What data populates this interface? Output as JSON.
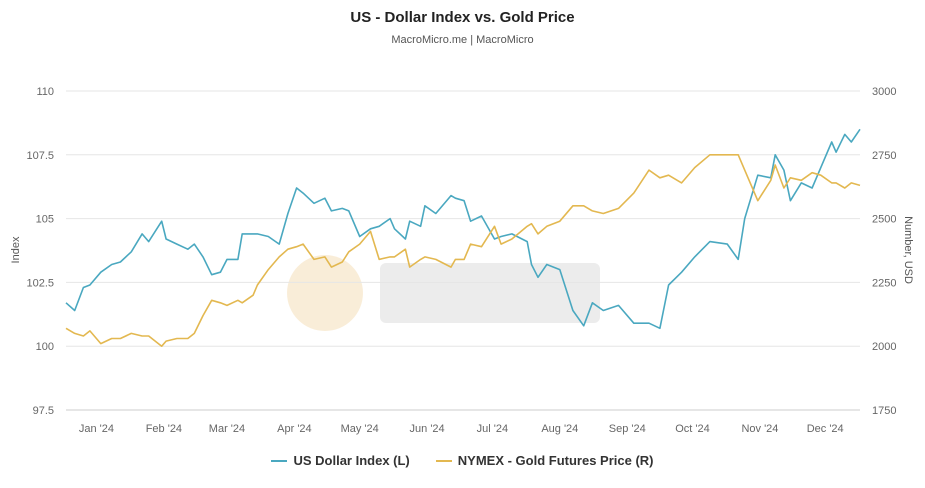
{
  "chart_data": {
    "type": "line",
    "title": "US - Dollar Index vs. Gold Price",
    "subtitle": "MacroMicro.me | MacroMicro",
    "ylabel_left": "Index",
    "ylabel_right": "Number, USD",
    "ylim_left": [
      97.5,
      110
    ],
    "ylim_right": [
      1750,
      3000
    ],
    "left_ticks": [
      "97.5",
      "100",
      "102.5",
      "105",
      "107.5",
      "110"
    ],
    "right_ticks": [
      "1750",
      "2000",
      "2250",
      "2500",
      "2750",
      "3000"
    ],
    "x_ticks": [
      "Jan '24",
      "Feb '24",
      "Mar '24",
      "Apr '24",
      "May '24",
      "Jun '24",
      "Jul '24",
      "Aug '24",
      "Sep '24",
      "Oct '24",
      "Nov '24",
      "Dec '24"
    ],
    "grid": true,
    "legend_position": "bottom",
    "series": [
      {
        "name": "US Dollar Index (L)",
        "axis": "left",
        "color": "#4aa8c0",
        "points": [
          [
            "2024-01-01",
            101.7
          ],
          [
            "2024-01-05",
            101.4
          ],
          [
            "2024-01-09",
            102.3
          ],
          [
            "2024-01-12",
            102.4
          ],
          [
            "2024-01-17",
            102.9
          ],
          [
            "2024-01-22",
            103.2
          ],
          [
            "2024-01-26",
            103.3
          ],
          [
            "2024-01-31",
            103.7
          ],
          [
            "2024-02-05",
            104.4
          ],
          [
            "2024-02-08",
            104.1
          ],
          [
            "2024-02-14",
            104.9
          ],
          [
            "2024-02-16",
            104.2
          ],
          [
            "2024-02-21",
            104.0
          ],
          [
            "2024-02-26",
            103.8
          ],
          [
            "2024-02-29",
            104.0
          ],
          [
            "2024-03-04",
            103.5
          ],
          [
            "2024-03-08",
            102.8
          ],
          [
            "2024-03-12",
            102.9
          ],
          [
            "2024-03-15",
            103.4
          ],
          [
            "2024-03-20",
            103.4
          ],
          [
            "2024-03-22",
            104.4
          ],
          [
            "2024-03-27",
            104.4
          ],
          [
            "2024-03-29",
            104.4
          ],
          [
            "2024-04-03",
            104.3
          ],
          [
            "2024-04-08",
            104.0
          ],
          [
            "2024-04-12",
            105.2
          ],
          [
            "2024-04-16",
            106.2
          ],
          [
            "2024-04-19",
            106.0
          ],
          [
            "2024-04-24",
            105.6
          ],
          [
            "2024-04-29",
            105.8
          ],
          [
            "2024-05-02",
            105.3
          ],
          [
            "2024-05-07",
            105.4
          ],
          [
            "2024-05-10",
            105.3
          ],
          [
            "2024-05-15",
            104.3
          ],
          [
            "2024-05-20",
            104.6
          ],
          [
            "2024-05-24",
            104.7
          ],
          [
            "2024-05-29",
            105.0
          ],
          [
            "2024-05-31",
            104.6
          ],
          [
            "2024-06-05",
            104.2
          ],
          [
            "2024-06-07",
            104.9
          ],
          [
            "2024-06-12",
            104.7
          ],
          [
            "2024-06-14",
            105.5
          ],
          [
            "2024-06-19",
            105.2
          ],
          [
            "2024-06-26",
            105.9
          ],
          [
            "2024-06-28",
            105.8
          ],
          [
            "2024-07-02",
            105.7
          ],
          [
            "2024-07-05",
            104.9
          ],
          [
            "2024-07-10",
            105.1
          ],
          [
            "2024-07-16",
            104.2
          ],
          [
            "2024-07-19",
            104.3
          ],
          [
            "2024-07-24",
            104.4
          ],
          [
            "2024-07-31",
            104.1
          ],
          [
            "2024-08-02",
            103.2
          ],
          [
            "2024-08-05",
            102.7
          ],
          [
            "2024-08-09",
            103.2
          ],
          [
            "2024-08-15",
            103.0
          ],
          [
            "2024-08-21",
            101.4
          ],
          [
            "2024-08-26",
            100.8
          ],
          [
            "2024-08-30",
            101.7
          ],
          [
            "2024-09-04",
            101.4
          ],
          [
            "2024-09-11",
            101.6
          ],
          [
            "2024-09-18",
            100.9
          ],
          [
            "2024-09-25",
            100.9
          ],
          [
            "2024-09-30",
            100.7
          ],
          [
            "2024-10-04",
            102.4
          ],
          [
            "2024-10-10",
            102.9
          ],
          [
            "2024-10-16",
            103.5
          ],
          [
            "2024-10-23",
            104.1
          ],
          [
            "2024-10-31",
            104.0
          ],
          [
            "2024-11-05",
            103.4
          ],
          [
            "2024-11-08",
            105.0
          ],
          [
            "2024-11-14",
            106.7
          ],
          [
            "2024-11-20",
            106.6
          ],
          [
            "2024-11-22",
            107.5
          ],
          [
            "2024-11-26",
            106.9
          ],
          [
            "2024-11-29",
            105.7
          ],
          [
            "2024-12-04",
            106.4
          ],
          [
            "2024-12-09",
            106.2
          ],
          [
            "2024-12-13",
            107.0
          ],
          [
            "2024-12-18",
            108.0
          ],
          [
            "2024-12-20",
            107.6
          ],
          [
            "2024-12-24",
            108.3
          ],
          [
            "2024-12-27",
            108.0
          ],
          [
            "2024-12-31",
            108.5
          ]
        ]
      },
      {
        "name": "NYMEX - Gold Futures Price (R)",
        "axis": "right",
        "color": "#e3b850",
        "points": [
          [
            "2024-01-01",
            2070
          ],
          [
            "2024-01-05",
            2050
          ],
          [
            "2024-01-09",
            2040
          ],
          [
            "2024-01-12",
            2060
          ],
          [
            "2024-01-17",
            2010
          ],
          [
            "2024-01-22",
            2030
          ],
          [
            "2024-01-26",
            2030
          ],
          [
            "2024-01-31",
            2050
          ],
          [
            "2024-02-05",
            2040
          ],
          [
            "2024-02-08",
            2040
          ],
          [
            "2024-02-14",
            2000
          ],
          [
            "2024-02-16",
            2020
          ],
          [
            "2024-02-21",
            2030
          ],
          [
            "2024-02-26",
            2030
          ],
          [
            "2024-02-29",
            2050
          ],
          [
            "2024-03-04",
            2120
          ],
          [
            "2024-03-08",
            2180
          ],
          [
            "2024-03-12",
            2170
          ],
          [
            "2024-03-15",
            2160
          ],
          [
            "2024-03-20",
            2180
          ],
          [
            "2024-03-22",
            2170
          ],
          [
            "2024-03-27",
            2200
          ],
          [
            "2024-03-29",
            2240
          ],
          [
            "2024-04-03",
            2300
          ],
          [
            "2024-04-08",
            2350
          ],
          [
            "2024-04-12",
            2380
          ],
          [
            "2024-04-16",
            2390
          ],
          [
            "2024-04-19",
            2400
          ],
          [
            "2024-04-24",
            2340
          ],
          [
            "2024-04-29",
            2350
          ],
          [
            "2024-05-02",
            2310
          ],
          [
            "2024-05-07",
            2330
          ],
          [
            "2024-05-10",
            2370
          ],
          [
            "2024-05-15",
            2400
          ],
          [
            "2024-05-20",
            2450
          ],
          [
            "2024-05-24",
            2340
          ],
          [
            "2024-05-29",
            2350
          ],
          [
            "2024-05-31",
            2350
          ],
          [
            "2024-06-05",
            2380
          ],
          [
            "2024-06-07",
            2310
          ],
          [
            "2024-06-12",
            2340
          ],
          [
            "2024-06-14",
            2350
          ],
          [
            "2024-06-19",
            2340
          ],
          [
            "2024-06-26",
            2310
          ],
          [
            "2024-06-28",
            2340
          ],
          [
            "2024-07-02",
            2340
          ],
          [
            "2024-07-05",
            2400
          ],
          [
            "2024-07-10",
            2390
          ],
          [
            "2024-07-16",
            2470
          ],
          [
            "2024-07-19",
            2400
          ],
          [
            "2024-07-24",
            2420
          ],
          [
            "2024-07-31",
            2470
          ],
          [
            "2024-08-02",
            2480
          ],
          [
            "2024-08-05",
            2440
          ],
          [
            "2024-08-09",
            2470
          ],
          [
            "2024-08-15",
            2490
          ],
          [
            "2024-08-21",
            2550
          ],
          [
            "2024-08-26",
            2550
          ],
          [
            "2024-08-30",
            2530
          ],
          [
            "2024-09-04",
            2520
          ],
          [
            "2024-09-11",
            2540
          ],
          [
            "2024-09-18",
            2600
          ],
          [
            "2024-09-25",
            2690
          ],
          [
            "2024-09-30",
            2660
          ],
          [
            "2024-10-04",
            2670
          ],
          [
            "2024-10-10",
            2640
          ],
          [
            "2024-10-16",
            2700
          ],
          [
            "2024-10-23",
            2750
          ],
          [
            "2024-10-31",
            2750
          ],
          [
            "2024-11-05",
            2750
          ],
          [
            "2024-11-08",
            2690
          ],
          [
            "2024-11-14",
            2570
          ],
          [
            "2024-11-20",
            2650
          ],
          [
            "2024-11-22",
            2710
          ],
          [
            "2024-11-26",
            2620
          ],
          [
            "2024-11-29",
            2660
          ],
          [
            "2024-12-04",
            2650
          ],
          [
            "2024-12-09",
            2680
          ],
          [
            "2024-12-13",
            2670
          ],
          [
            "2024-12-18",
            2640
          ],
          [
            "2024-12-20",
            2640
          ],
          [
            "2024-12-24",
            2620
          ],
          [
            "2024-12-27",
            2640
          ],
          [
            "2024-12-31",
            2630
          ]
        ]
      }
    ]
  }
}
